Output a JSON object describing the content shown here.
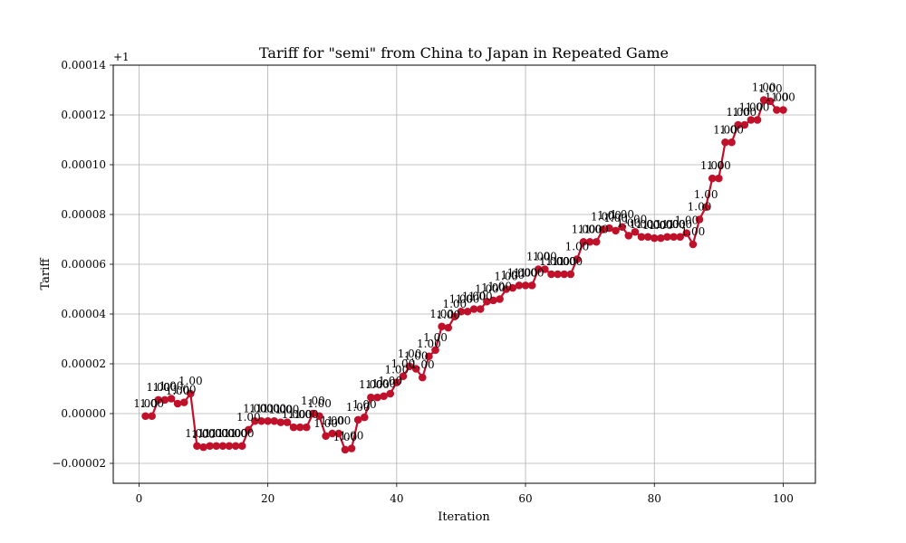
{
  "chart_data": {
    "type": "line",
    "title": "Tariff for \"semi\" from China to Japan in Repeated Game",
    "xlabel": "Iteration",
    "ylabel": "Tariff",
    "offset_label": "+1",
    "xlim": [
      -4,
      105
    ],
    "ylim": [
      -2.8e-05,
      0.00014
    ],
    "grid": true,
    "x_ticks": [
      0,
      20,
      40,
      60,
      80,
      100
    ],
    "x_tick_labels": [
      "0",
      "20",
      "40",
      "60",
      "80",
      "100"
    ],
    "y_ticks": [
      -2e-05,
      0,
      2e-05,
      4e-05,
      6e-05,
      8e-05,
      0.0001,
      0.00012,
      0.00014
    ],
    "y_tick_labels": [
      "−0.00002",
      "0.00000",
      "0.00002",
      "0.00004",
      "0.00006",
      "0.00008",
      "0.00010",
      "0.00012",
      "0.00014"
    ],
    "line_color": "#c0102a",
    "point_label": "1.00",
    "series": [
      {
        "x": [
          1,
          2,
          3,
          4,
          5,
          6,
          7,
          8,
          9,
          10,
          11,
          12,
          13,
          14,
          15,
          16,
          17,
          18,
          19,
          20,
          21,
          22,
          23,
          24,
          25,
          26,
          27,
          28,
          29,
          30,
          31,
          32,
          33,
          34,
          35,
          36,
          37,
          38,
          39,
          40,
          41,
          42,
          43,
          44,
          45,
          46,
          47,
          48,
          49,
          50,
          51,
          52,
          53,
          54,
          55,
          56,
          57,
          58,
          59,
          60,
          61,
          62,
          63,
          64,
          65,
          66,
          67,
          68,
          69,
          70,
          71,
          72,
          73,
          74,
          75,
          76,
          77,
          78,
          79,
          80,
          81,
          82,
          83,
          84,
          85,
          86,
          87,
          88,
          89,
          90,
          91,
          92,
          93,
          94,
          95,
          96,
          97,
          98,
          99,
          100
        ],
        "values": [
          -1e-06,
          -1e-06,
          5.5e-06,
          5.5e-06,
          6e-06,
          4e-06,
          4.5e-06,
          8e-06,
          -1.3e-05,
          -1.35e-05,
          -1.3e-05,
          -1.3e-05,
          -1.3e-05,
          -1.3e-05,
          -1.3e-05,
          -1.3e-05,
          -6.5e-06,
          -3e-06,
          -3e-06,
          -3e-06,
          -3e-06,
          -3.5e-06,
          -3.5e-06,
          -5.5e-06,
          -5.5e-06,
          -5.5e-06,
          0,
          -1e-06,
          -9e-06,
          -8e-06,
          -8e-06,
          -1.45e-05,
          -1.4e-05,
          -2.5e-06,
          -1.5e-06,
          6.5e-06,
          6.5e-06,
          7e-06,
          8e-06,
          1.25e-05,
          1.5e-05,
          1.9e-05,
          1.8e-05,
          1.45e-05,
          2.3e-05,
          2.55e-05,
          3.5e-05,
          3.45e-05,
          3.9e-05,
          4.1e-05,
          4.1e-05,
          4.2e-05,
          4.2e-05,
          4.5e-05,
          4.55e-05,
          4.6e-05,
          5e-05,
          5.05e-05,
          5.15e-05,
          5.15e-05,
          5.15e-05,
          5.8e-05,
          5.8e-05,
          5.6e-05,
          5.6e-05,
          5.6e-05,
          5.6e-05,
          6.2e-05,
          6.9e-05,
          6.9e-05,
          6.9e-05,
          7.4e-05,
          7.45e-05,
          7.35e-05,
          7.5e-05,
          7.15e-05,
          7.3e-05,
          7.1e-05,
          7.1e-05,
          7.05e-05,
          7.05e-05,
          7.1e-05,
          7.1e-05,
          7.1e-05,
          7.25e-05,
          6.8e-05,
          7.8e-05,
          8.3e-05,
          9.45e-05,
          9.45e-05,
          0.000109,
          0.000109,
          0.000116,
          0.000116,
          0.000118,
          0.000118,
          0.000126,
          0.0001255,
          0.000122,
          0.000122
        ]
      }
    ]
  }
}
